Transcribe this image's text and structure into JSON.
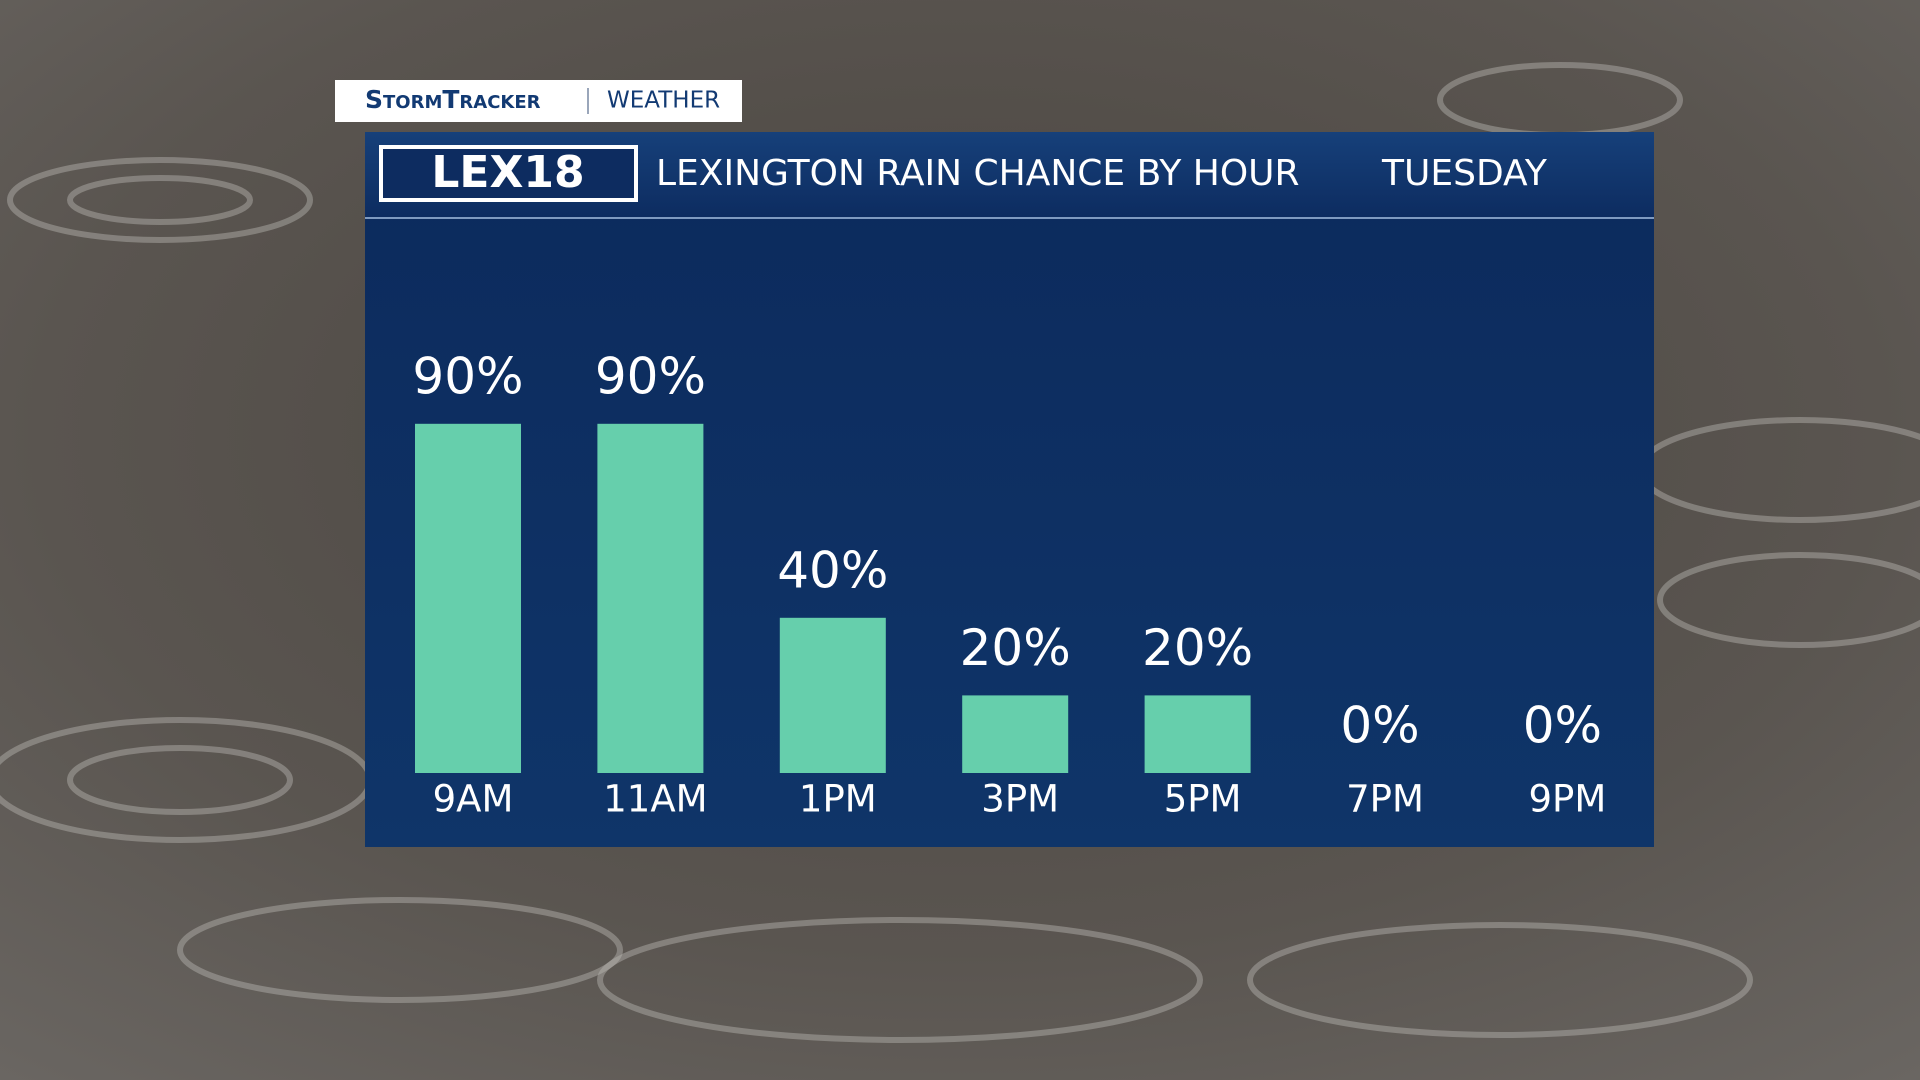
{
  "branding": {
    "show": "StormTracker",
    "section": "WEATHER",
    "station": "LEX18"
  },
  "chart_data": {
    "type": "bar",
    "title": "LEXINGTON RAIN CHANCE BY HOUR",
    "subtitle": "TUESDAY",
    "categories": [
      "9AM",
      "11AM",
      "1PM",
      "3PM",
      "5PM",
      "7PM",
      "9PM"
    ],
    "values": [
      90,
      90,
      40,
      20,
      20,
      0,
      0
    ],
    "value_labels": [
      "90%",
      "90%",
      "40%",
      "20%",
      "20%",
      "0%",
      "0%"
    ],
    "color": "#66cfac",
    "ylim": [
      0,
      100
    ]
  }
}
